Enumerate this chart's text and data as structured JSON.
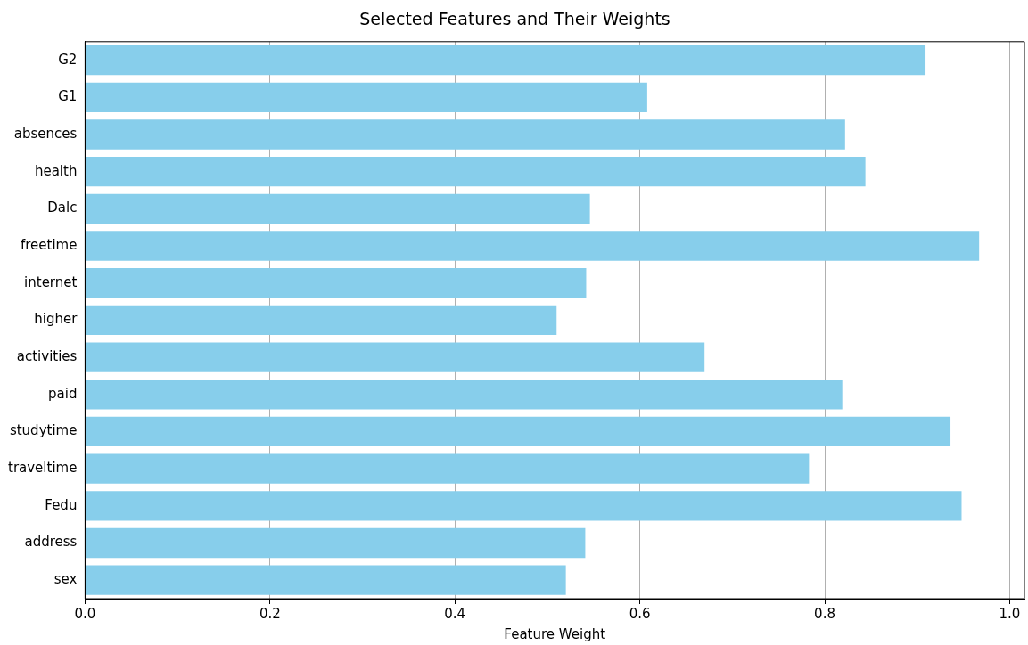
{
  "chart_data": {
    "type": "bar",
    "orientation": "horizontal",
    "title": "Selected Features and Their Weights",
    "xlabel": "Feature Weight",
    "categories": [
      "G2",
      "G1",
      "absences",
      "health",
      "Dalc",
      "freetime",
      "internet",
      "higher",
      "activities",
      "paid",
      "studytime",
      "traveltime",
      "Fedu",
      "address",
      "sex"
    ],
    "values": [
      0.909,
      0.608,
      0.822,
      0.844,
      0.546,
      0.967,
      0.542,
      0.51,
      0.67,
      0.819,
      0.936,
      0.783,
      0.948,
      0.541,
      0.52
    ],
    "color": "#87ceeb",
    "xlim": [
      0,
      1.016
    ],
    "xticks": [
      {
        "value": 0,
        "label": "0.0"
      },
      {
        "value": 0.2,
        "label": "0.2"
      },
      {
        "value": 0.4,
        "label": "0.4"
      },
      {
        "value": 0.6,
        "label": "0.6"
      },
      {
        "value": 0.8,
        "label": "0.8"
      },
      {
        "value": 1,
        "label": "1.0"
      }
    ],
    "grid": "x"
  }
}
